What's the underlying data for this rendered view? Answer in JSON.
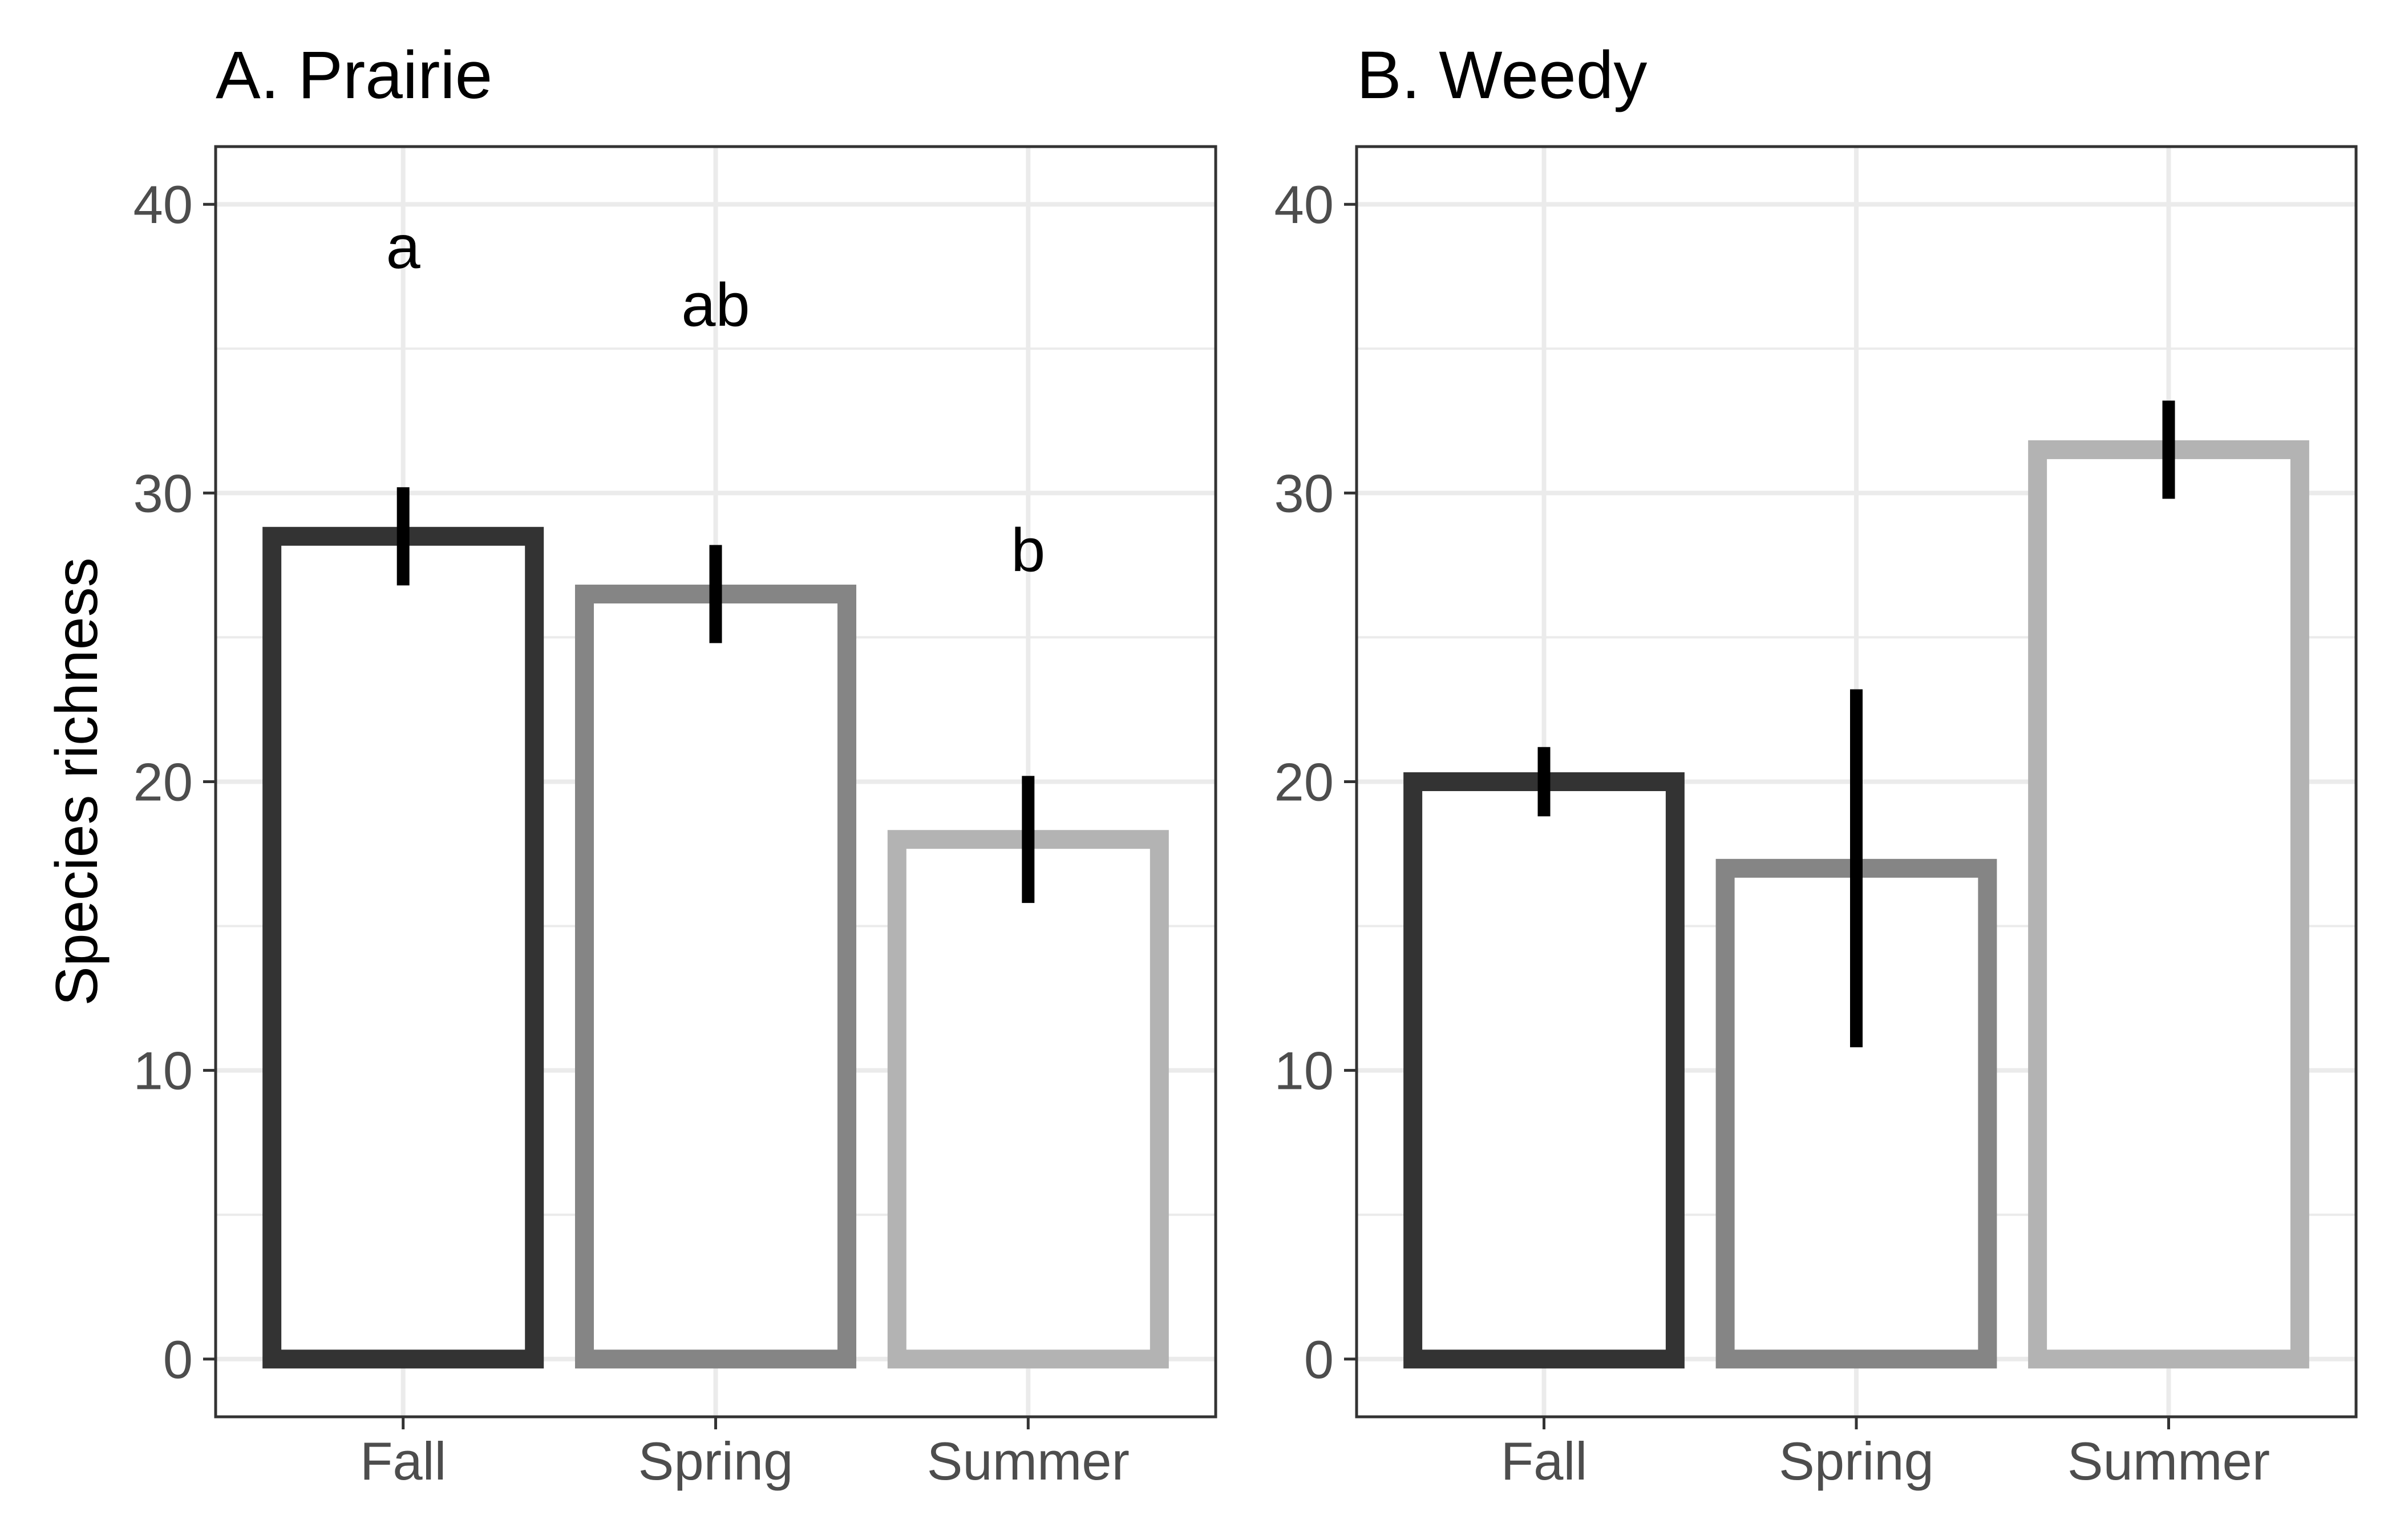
{
  "chart_data": {
    "type": "bar",
    "ylabel": "Species richness",
    "xlabel": "",
    "ylim": [
      -2,
      42
    ],
    "yticks": [
      0,
      10,
      20,
      30,
      40
    ],
    "grid": true,
    "categories": [
      "Fall",
      "Spring",
      "Summer"
    ],
    "colors": {
      "Fall": "#333333",
      "Spring": "#858585",
      "Summer": "#b3b3b3",
      "error_bar": "#000000",
      "grid": "#ebebeb",
      "panel_border": "#333333"
    },
    "panels": [
      {
        "title": "A. Prairie",
        "values": [
          28.5,
          26.5,
          18.0
        ],
        "error_low": [
          26.8,
          24.8,
          15.8
        ],
        "error_high": [
          30.2,
          28.2,
          20.2
        ],
        "labels": [
          "a",
          "ab",
          "b"
        ],
        "label_y": [
          38.5,
          36.5,
          28.0
        ]
      },
      {
        "title": "B. Weedy",
        "values": [
          20.0,
          17.0,
          31.5
        ],
        "error_low": [
          18.8,
          10.8,
          29.8
        ],
        "error_high": [
          21.2,
          23.2,
          33.2
        ],
        "labels": [
          "",
          "",
          ""
        ],
        "label_y": [
          null,
          null,
          null
        ]
      }
    ]
  }
}
